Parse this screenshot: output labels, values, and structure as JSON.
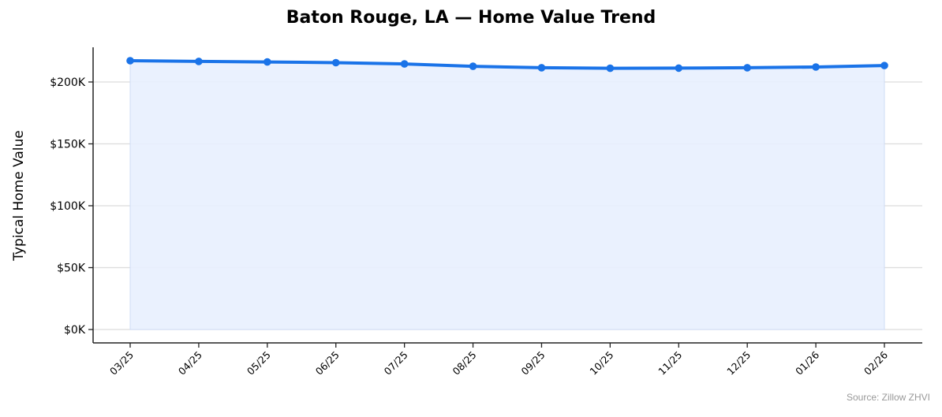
{
  "title": "Baton Rouge, LA — Home Value Trend",
  "source": "Source: Zillow ZHVI",
  "colors": {
    "line": "#1a73e8",
    "fill": "#e8f0fe",
    "grid": "#dcdcdc",
    "axis": "#222222"
  },
  "chart_data": {
    "type": "line",
    "title": "Baton Rouge, LA — Home Value Trend",
    "xlabel": "",
    "ylabel": "Typical Home Value",
    "categories": [
      "03/25",
      "04/25",
      "05/25",
      "06/25",
      "07/25",
      "08/25",
      "09/25",
      "10/25",
      "11/25",
      "12/25",
      "01/26",
      "02/26"
    ],
    "series": [
      {
        "name": "Typical Home Value",
        "values": [
          217200,
          216600,
          216200,
          215600,
          214600,
          212700,
          211500,
          211100,
          211200,
          211500,
          212100,
          213300
        ]
      }
    ],
    "yticks": [
      0,
      50000,
      100000,
      150000,
      200000
    ],
    "ytick_labels": [
      "$0K",
      "$50K",
      "$100K",
      "$150K",
      "$200K"
    ],
    "ylim": [
      -11000,
      228000
    ],
    "grid": "y",
    "area_fill": true,
    "legend": "none",
    "annotation": "Source: Zillow ZHVI"
  }
}
